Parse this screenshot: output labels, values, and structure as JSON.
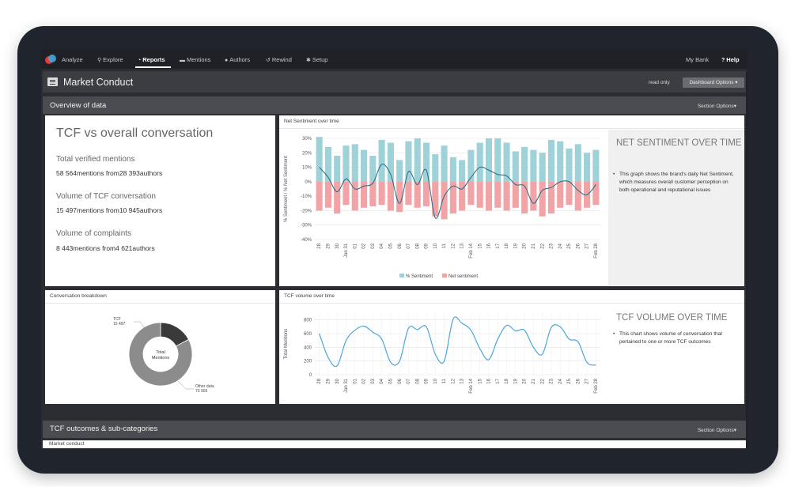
{
  "nav": {
    "app_name": "Analyze",
    "items": [
      {
        "label": "Explore",
        "icon": "search-icon",
        "glyph": "⚲"
      },
      {
        "label": "Reports",
        "icon": "pie-icon",
        "glyph": "◔"
      },
      {
        "label": "Mentions",
        "icon": "chat-icon",
        "glyph": "▬"
      },
      {
        "label": "Authors",
        "icon": "user-icon",
        "glyph": "●"
      },
      {
        "label": "Rewind",
        "icon": "history-icon",
        "glyph": "↺"
      },
      {
        "label": "Setup",
        "icon": "gear-icon",
        "glyph": "✱"
      }
    ],
    "active": "Reports",
    "account": "My Bank",
    "help": "Help",
    "help_glyph": "?"
  },
  "header": {
    "title": "Market Conduct",
    "read_only": "read only",
    "dashboard_options": "Dashboard Options"
  },
  "overview": {
    "section_title": "Overview of data",
    "section_options": "Section Options",
    "tcf_panel": {
      "title": "TCF vs overall conversation",
      "stats": [
        {
          "label": "Total verified mentions",
          "value": "58 564mentions from28 393authors"
        },
        {
          "label": "Volume of TCF conversation",
          "value": "15 497mentions from10 945authors"
        },
        {
          "label": "Volume of complaints",
          "value": "8 443mentions from4 621authors"
        }
      ]
    },
    "net_sentiment": {
      "panel_title": "Net Sentiment over time",
      "side_heading": "NET SENTIMENT OVER TIME",
      "side_text": "This graph shows the brand's daily Net Sentiment, which measures overall customer perception on both operational and reputational issues"
    },
    "breakdown": {
      "panel_title": "Conversation breakdown",
      "center_label": "Total Mentions",
      "tcf_label": "TCF",
      "tcf_value": "15 497",
      "other_label": "Other data",
      "other_value": "73 903"
    },
    "tcf_volume": {
      "panel_title": "TCF volume over time",
      "side_heading": "TCF VOLUME OVER TIME",
      "side_text": "This chart shows volume of conversation that pertained to one or more TCF outcomes"
    }
  },
  "outcomes": {
    "section_title": "TCF outcomes & sub-categories",
    "section_options": "Section Options",
    "sub_title": "Market conduct"
  },
  "colors": {
    "positive": "#9ed2d8",
    "negative": "#f2a3a6",
    "net_line": "#1f6b82",
    "volume_line": "#4aa6dc",
    "donut_dark": "#3a3a3a",
    "donut_light": "#8c8c8c"
  },
  "chart_data": [
    {
      "type": "bar",
      "title": "Net Sentiment over time",
      "ylabel": "% Sentiment / % Net Sentiment",
      "ylim": [
        -40,
        30
      ],
      "yticks": [
        30,
        20,
        10,
        0,
        -10,
        -20,
        -30,
        -40
      ],
      "tick_suffix": "%",
      "x": [
        "28",
        "29",
        "30",
        "Jan 31",
        "01",
        "02",
        "03",
        "04",
        "05",
        "06",
        "07",
        "08",
        "09",
        "10",
        "11",
        "12",
        "13",
        "Feb 14",
        "15",
        "16",
        "17",
        "18",
        "19",
        "20",
        "21",
        "22",
        "23",
        "24",
        "25",
        "26",
        "27",
        "Feb 28"
      ],
      "grid": true,
      "legend": "bottom",
      "series": [
        {
          "name": "% Sentiment",
          "values": [
            31,
            24,
            18,
            25,
            26,
            22,
            18,
            29,
            27,
            15,
            28,
            30,
            27,
            19,
            25,
            17,
            15,
            22,
            27,
            30,
            30,
            27,
            21,
            24,
            22,
            20,
            29,
            28,
            23,
            26,
            20,
            22
          ]
        },
        {
          "name": "Net sentiment",
          "values": [
            -20,
            -18,
            -22,
            -16,
            -20,
            -18,
            -17,
            -16,
            -20,
            -21,
            -16,
            -18,
            -17,
            -24,
            -26,
            -22,
            -20,
            -16,
            -18,
            -20,
            -18,
            -20,
            -18,
            -22,
            -20,
            -24,
            -22,
            -18,
            -16,
            -20,
            -18,
            -16
          ]
        },
        {
          "name": "Net sentiment line",
          "values": [
            10,
            3,
            -7,
            2,
            -5,
            -3,
            -1,
            12,
            5,
            -15,
            7,
            -2,
            8,
            -25,
            -10,
            -3,
            -5,
            3,
            10,
            8,
            5,
            4,
            -2,
            -3,
            -15,
            -6,
            -4,
            0,
            0,
            -6,
            -9,
            -2
          ]
        }
      ]
    },
    {
      "type": "pie",
      "title": "Conversation breakdown",
      "categories": [
        "TCF",
        "Other data"
      ],
      "values": [
        15497,
        73903
      ]
    },
    {
      "type": "line",
      "title": "TCF volume over time",
      "ylabel": "Total Mentions",
      "ylim": [
        0,
        900
      ],
      "yticks": [
        800,
        600,
        400,
        200,
        0
      ],
      "x": [
        "28",
        "29",
        "30",
        "Jan 31",
        "01",
        "02",
        "03",
        "04",
        "05",
        "06",
        "07",
        "08",
        "09",
        "10",
        "11",
        "12",
        "13",
        "Feb 14",
        "15",
        "16",
        "17",
        "18",
        "19",
        "20",
        "21",
        "22",
        "23",
        "24",
        "25",
        "26",
        "27",
        "Feb 28"
      ],
      "grid": true,
      "series": [
        {
          "name": "TCF volume",
          "values": [
            600,
            250,
            130,
            500,
            650,
            710,
            620,
            520,
            180,
            200,
            680,
            660,
            700,
            300,
            200,
            810,
            750,
            650,
            380,
            220,
            520,
            720,
            640,
            650,
            400,
            300,
            690,
            700,
            520,
            480,
            180,
            140
          ]
        }
      ]
    }
  ]
}
